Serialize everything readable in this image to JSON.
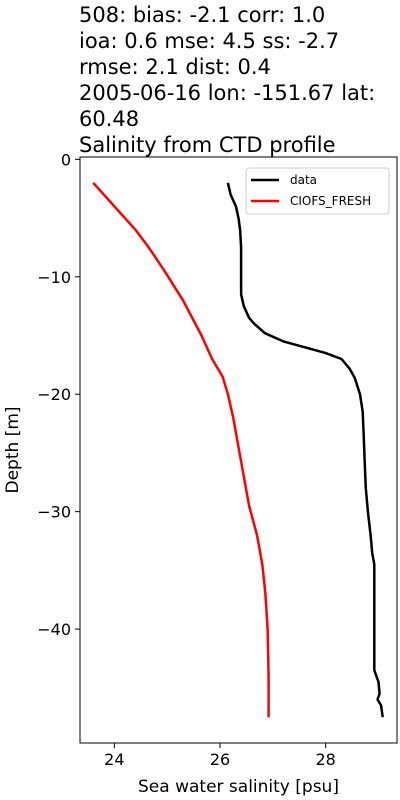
{
  "title_lines": [
    "508: bias: -2.1  corr: 1.0",
    "ioa: 0.6  mse: 4.5  ss: -2.7",
    "rmse: 2.1  dist: 0.4",
    "2005-06-16 lon: -151.67 lat:",
    "60.48",
    "Salinity from CTD profile"
  ],
  "chart_data": {
    "type": "line",
    "xlabel": "Sea water salinity [psu]",
    "ylabel": "Depth [m]",
    "xlim": [
      23.35,
      29.35
    ],
    "ylim": [
      -49.7,
      0.2
    ],
    "xticks": [
      24,
      26,
      28
    ],
    "yticks": [
      0,
      -10,
      -20,
      -30,
      -40
    ],
    "grid": false,
    "legend_position": "upper right",
    "series": [
      {
        "name": "data",
        "color": "#000000",
        "points": [
          [
            26.15,
            -2.0
          ],
          [
            26.2,
            -3.0
          ],
          [
            26.3,
            -4.0
          ],
          [
            26.35,
            -5.0
          ],
          [
            26.38,
            -6.0
          ],
          [
            26.4,
            -7.5
          ],
          [
            26.4,
            -9.0
          ],
          [
            26.4,
            -10.5
          ],
          [
            26.4,
            -11.5
          ],
          [
            26.45,
            -12.5
          ],
          [
            26.55,
            -13.5
          ],
          [
            26.65,
            -14.0
          ],
          [
            26.85,
            -14.8
          ],
          [
            27.2,
            -15.5
          ],
          [
            27.6,
            -16.0
          ],
          [
            28.0,
            -16.5
          ],
          [
            28.3,
            -17.0
          ],
          [
            28.45,
            -17.8
          ],
          [
            28.55,
            -18.6
          ],
          [
            28.65,
            -20.0
          ],
          [
            28.7,
            -21.5
          ],
          [
            28.72,
            -23.5
          ],
          [
            28.74,
            -26.0
          ],
          [
            28.76,
            -28.0
          ],
          [
            28.8,
            -30.0
          ],
          [
            28.85,
            -32.0
          ],
          [
            28.88,
            -33.5
          ],
          [
            28.92,
            -34.5
          ],
          [
            28.92,
            -36.0
          ],
          [
            28.92,
            -40.0
          ],
          [
            28.92,
            -43.5
          ],
          [
            29.0,
            -44.5
          ],
          [
            29.02,
            -45.5
          ],
          [
            28.98,
            -46.0
          ],
          [
            29.05,
            -46.5
          ],
          [
            29.08,
            -47.5
          ]
        ]
      },
      {
        "name": "CIOFS_FRESH",
        "color": "#ff0000",
        "points": [
          [
            23.6,
            -2.0
          ],
          [
            23.8,
            -3.0
          ],
          [
            24.1,
            -4.5
          ],
          [
            24.4,
            -6.0
          ],
          [
            24.65,
            -7.5
          ],
          [
            24.95,
            -9.5
          ],
          [
            25.3,
            -12.0
          ],
          [
            25.65,
            -15.0
          ],
          [
            25.85,
            -17.0
          ],
          [
            26.05,
            -18.5
          ],
          [
            26.15,
            -20.0
          ],
          [
            26.25,
            -22.0
          ],
          [
            26.35,
            -24.5
          ],
          [
            26.45,
            -27.0
          ],
          [
            26.55,
            -29.5
          ],
          [
            26.7,
            -32.0
          ],
          [
            26.8,
            -34.5
          ],
          [
            26.86,
            -37.0
          ],
          [
            26.9,
            -40.0
          ],
          [
            26.92,
            -44.0
          ],
          [
            26.92,
            -47.5
          ]
        ]
      }
    ]
  }
}
